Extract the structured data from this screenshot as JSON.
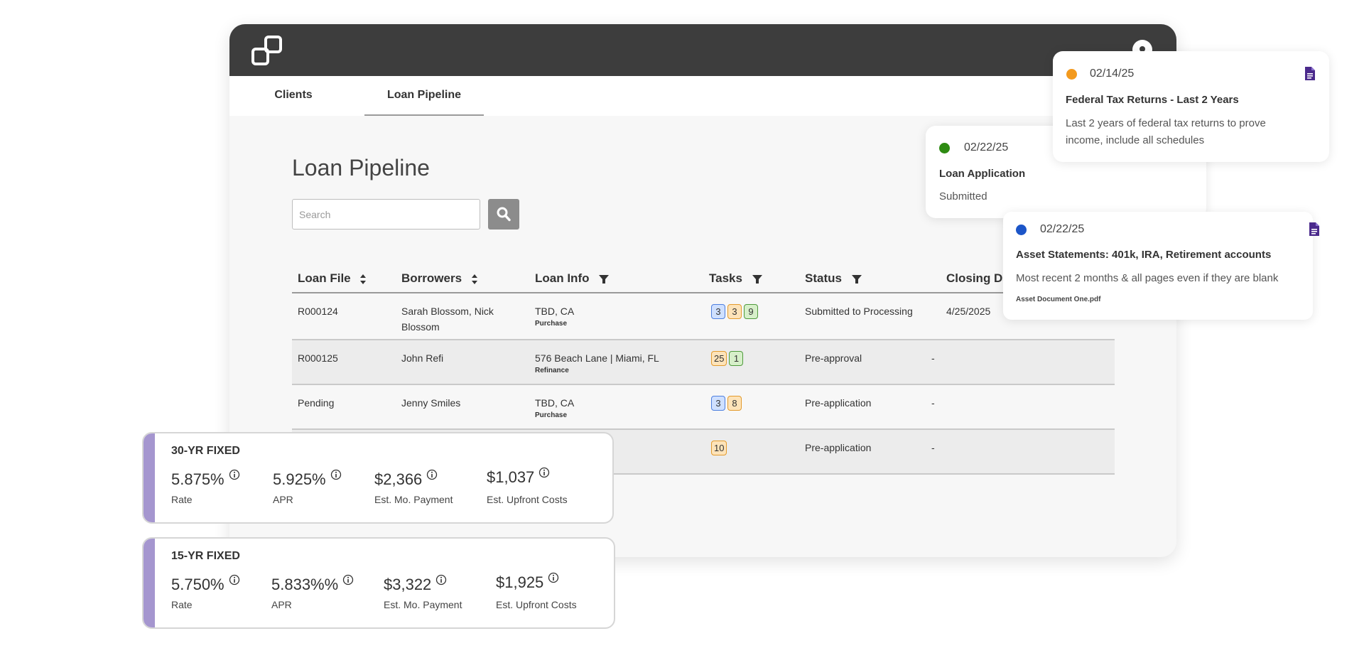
{
  "nav": {
    "tabs": [
      {
        "label": "Clients"
      },
      {
        "label": "Loan Pipeline"
      }
    ]
  },
  "main": {
    "title": "Loan Pipeline",
    "search": {
      "placeholder": "Search",
      "value": ""
    }
  },
  "table": {
    "columns": [
      "Loan File",
      "Borrowers",
      "Loan Info",
      "Tasks",
      "Status",
      "Closing Da"
    ],
    "rows": [
      {
        "loan_file": "R000124",
        "borrowers": "Sarah Blossom, Nick Blossom",
        "loan_info": "TBD, CA",
        "loan_type": "Purchase",
        "tasks": [
          {
            "count": "3",
            "color": "blue"
          },
          {
            "count": "3",
            "color": "orange"
          },
          {
            "count": "9",
            "color": "green"
          }
        ],
        "status": "Submitted to Processing",
        "closing": "4/25/2025"
      },
      {
        "loan_file": "R000125",
        "borrowers": "John Refi",
        "loan_info": "576 Beach Lane | Miami, FL",
        "loan_type": "Refinance",
        "tasks": [
          {
            "count": "25",
            "color": "orange"
          },
          {
            "count": "1",
            "color": "green"
          }
        ],
        "status": "Pre-approval",
        "closing": "-"
      },
      {
        "loan_file": "Pending",
        "borrowers": "Jenny Smiles",
        "loan_info": "TBD, CA",
        "loan_type": "Purchase",
        "tasks": [
          {
            "count": "3",
            "color": "blue"
          },
          {
            "count": "8",
            "color": "orange"
          }
        ],
        "status": "Pre-application",
        "closing": "-"
      },
      {
        "loan_file": "",
        "borrowers": "",
        "loan_info": "",
        "loan_type": "",
        "tasks": [
          {
            "count": "10",
            "color": "orange"
          }
        ],
        "status": "Pre-application",
        "closing": "-"
      }
    ]
  },
  "notifications": [
    {
      "date": "02/14/25",
      "dot_color": "#f39a1e",
      "title": "Federal Tax Returns - Last 2 Years",
      "desc_line1": "Last 2 years of federal tax returns to prove",
      "desc_line2": "income, include all schedules",
      "icon": "document-icon"
    },
    {
      "date": "02/22/25",
      "dot_color": "#2e8b12",
      "title": "Loan Application",
      "desc_line1": "Submitted",
      "icon": ""
    },
    {
      "date": "02/22/25",
      "dot_color": "#1c55c8",
      "title": "Asset Statements: 401k, IRA, Retirement accounts",
      "desc_line1": "Most recent 2 months & all pages even if they are blank",
      "file": "Asset Document One.pdf",
      "icon": "document-icon"
    }
  ],
  "rates": [
    {
      "title": "30-YR FIXED",
      "metrics": [
        {
          "value": "5.875%",
          "label": "Rate"
        },
        {
          "value": "5.925%",
          "label": "APR"
        },
        {
          "value": "$2,366",
          "label": "Est. Mo. Payment"
        },
        {
          "value": "$1,037",
          "label": "Est. Upfront Costs"
        }
      ]
    },
    {
      "title": "15-YR FIXED",
      "metrics": [
        {
          "value": "5.750%",
          "label": "Rate"
        },
        {
          "value": "5.833%%",
          "label": "APR"
        },
        {
          "value": "$3,322",
          "label": "Est. Mo. Payment"
        },
        {
          "value": "$1,925",
          "label": "Est. Upfront Costs"
        }
      ]
    }
  ],
  "colors": {
    "header": "#3d3d3d",
    "accent_stripe": "#a596cf",
    "doc_icon": "#4b2a8c"
  }
}
